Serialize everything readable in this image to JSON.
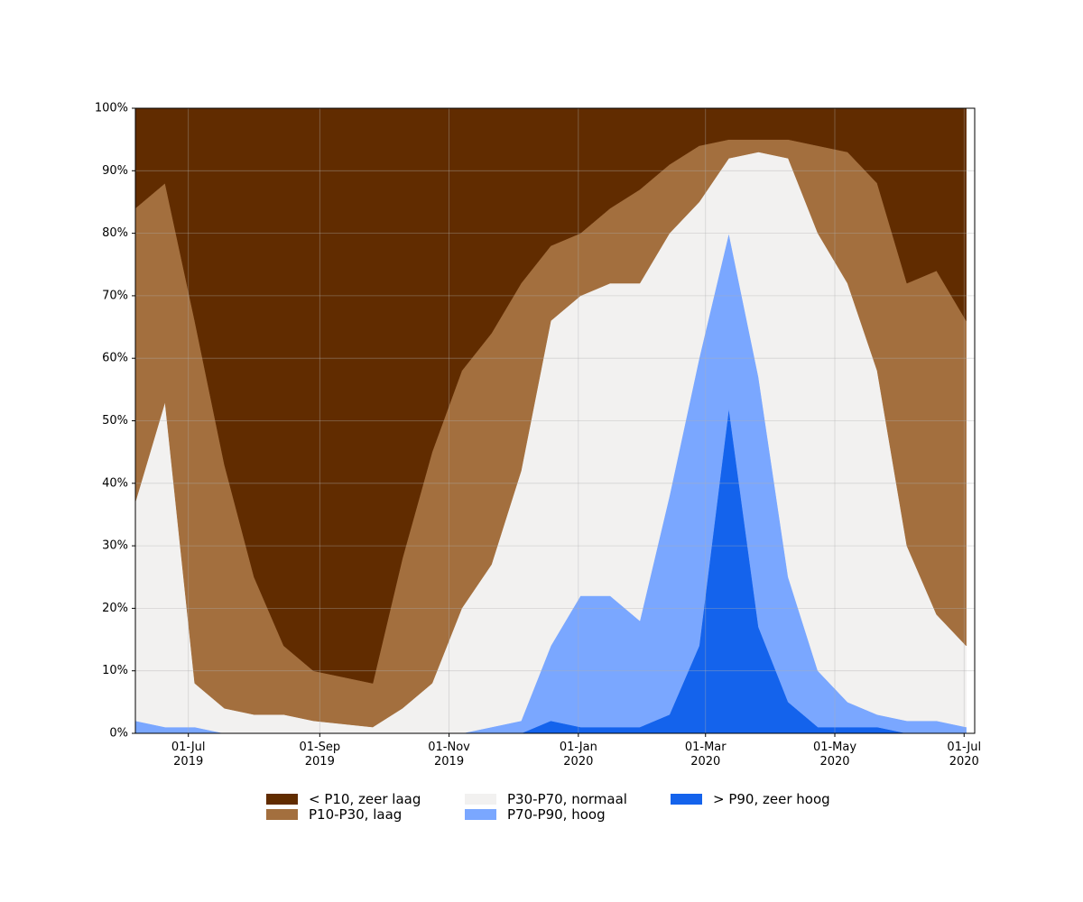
{
  "chart_data": {
    "type": "area",
    "stacked": true,
    "x": [
      "2019-06-06",
      "2019-06-20",
      "2019-07-04",
      "2019-07-18",
      "2019-08-01",
      "2019-08-15",
      "2019-08-29",
      "2019-09-12",
      "2019-09-26",
      "2019-10-10",
      "2019-10-24",
      "2019-11-07",
      "2019-11-21",
      "2019-12-05",
      "2019-12-19",
      "2020-01-02",
      "2020-01-16",
      "2020-01-30",
      "2020-02-13",
      "2020-02-27",
      "2020-03-12",
      "2020-03-26",
      "2020-04-09",
      "2020-04-23",
      "2020-05-07",
      "2020-05-21",
      "2020-06-04",
      "2020-06-18",
      "2020-07-02"
    ],
    "series": [
      {
        "name": "> P90, zeer hoog",
        "color": "#1463ec",
        "values": [
          0,
          0,
          0,
          0,
          0,
          0,
          0,
          0,
          0,
          0,
          0,
          0,
          0,
          0,
          2,
          1,
          1,
          1,
          3,
          14,
          52,
          17,
          5,
          1,
          1,
          1,
          0,
          0,
          0
        ]
      },
      {
        "name": "P70-P90, hoog",
        "color": "#7aa7ff",
        "values": [
          2,
          1,
          1,
          0,
          0,
          0,
          0,
          0,
          0,
          0,
          0,
          0,
          1,
          2,
          12,
          21,
          21,
          17,
          35,
          46,
          28,
          40,
          20,
          9,
          4,
          2,
          2,
          2,
          1
        ]
      },
      {
        "name": "P30-P70, normaal",
        "color": "#f2f1f0",
        "values": [
          35,
          52,
          7,
          4,
          3,
          3,
          2,
          1.5,
          1,
          4,
          8,
          20,
          26,
          40,
          52,
          48,
          50,
          54,
          42,
          25,
          12,
          36,
          67,
          70,
          67,
          55,
          28,
          17,
          13
        ]
      },
      {
        "name": "P10-P30, laag",
        "color": "#a36f3e",
        "values": [
          47,
          35,
          58,
          39,
          22,
          11,
          8,
          7.5,
          7,
          24,
          37,
          38,
          37,
          30,
          12,
          10,
          12,
          15,
          11,
          9,
          3,
          2,
          3,
          14,
          21,
          30,
          42,
          55,
          52
        ]
      },
      {
        "name": "< P10, zeer laag",
        "color": "#612c00",
        "values": [
          16,
          12,
          34,
          57,
          75,
          86,
          90,
          91,
          92,
          72,
          55,
          42,
          36,
          28,
          22,
          20,
          16,
          13,
          9,
          6,
          5,
          5,
          5,
          6,
          7,
          12,
          28,
          26,
          34
        ]
      }
    ],
    "xlim": [
      "2019-06-06",
      "2020-07-06"
    ],
    "xticks": [
      {
        "value": "2019-07-01",
        "label": "01-Jul\n2019"
      },
      {
        "value": "2019-09-01",
        "label": "01-Sep\n2019"
      },
      {
        "value": "2019-11-01",
        "label": "01-Nov\n2019"
      },
      {
        "value": "2020-01-01",
        "label": "01-Jan\n2020"
      },
      {
        "value": "2020-03-01",
        "label": "01-Mar\n2020"
      },
      {
        "value": "2020-05-01",
        "label": "01-May\n2020"
      },
      {
        "value": "2020-07-01",
        "label": "01-Jul\n2020"
      }
    ],
    "ylim": [
      0,
      100
    ],
    "yticks": [
      {
        "value": 0,
        "label": "0%"
      },
      {
        "value": 10,
        "label": "10%"
      },
      {
        "value": 20,
        "label": "20%"
      },
      {
        "value": 30,
        "label": "30%"
      },
      {
        "value": 40,
        "label": "40%"
      },
      {
        "value": 50,
        "label": "50%"
      },
      {
        "value": 60,
        "label": "60%"
      },
      {
        "value": 70,
        "label": "70%"
      },
      {
        "value": 80,
        "label": "80%"
      },
      {
        "value": 90,
        "label": "90%"
      },
      {
        "value": 100,
        "label": "100%"
      }
    ],
    "grid": true,
    "legend": "lower center"
  }
}
